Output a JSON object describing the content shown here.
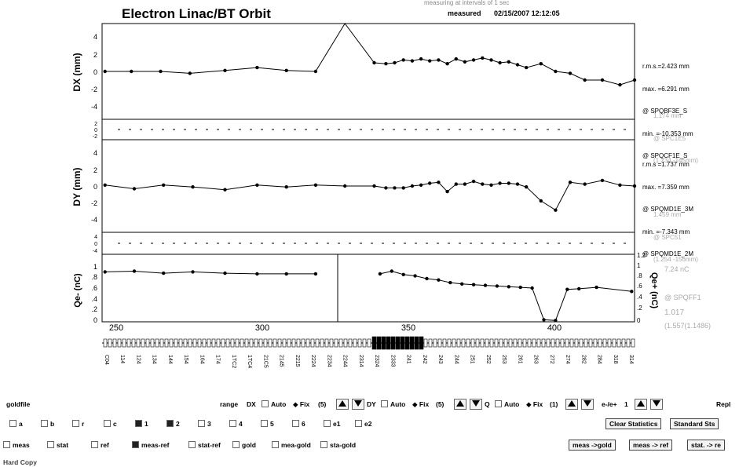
{
  "header": {
    "title": "Electron Linac/BT  Orbit",
    "subtitle": "measuring at intervals of 1 sec",
    "measured_label": "measured",
    "timestamp": "02/15/2007 12:12:05"
  },
  "stats": {
    "dx": [
      "r.m.s.=2.423 mm",
      "max. =6.291 mm",
      "@ SPQBF3E_S",
      "min. =-10.353 mm",
      "@ SPQCF1E_S"
    ],
    "dx_faint": [
      "1.174 mm",
      "@ SPC1E5",
      "(1.234 -145mm)"
    ],
    "dy": [
      "r.m.s =1.737 mm",
      "max. =7.359 mm",
      "@ SPQMD1E_3M",
      "min. =-7.343 mm",
      "@ SPQMD1E_2M"
    ],
    "dy_faint": [
      "1.459 mm",
      "@ SPC51",
      "(1.254 -156mm)"
    ],
    "q_faint": [
      "7.24 nC",
      "@ SPQFF1",
      "(1.557(1.1486)"
    ],
    "q_tail": "1.017"
  },
  "axes": {
    "dx_label": "DX (mm)",
    "dy_label": "DY (mm)",
    "q_label": "Qe- (nC)",
    "q_right_label": "Qe+ (nC)",
    "dx_ticks": [
      "4",
      "2",
      "0",
      "-2",
      "-4"
    ],
    "dy_ticks": [
      "4",
      "2",
      "0",
      "-2",
      "-4"
    ],
    "q_ticks": [
      "1",
      ".8",
      ".6",
      ".4",
      ".2",
      "0"
    ],
    "q_right_ticks": [
      "1.2",
      "1",
      ".8",
      ".6",
      ".4",
      ".2",
      "0"
    ],
    "x_ticks": [
      "250",
      "300",
      "350",
      "400"
    ],
    "diff_ticks": [
      "2",
      "0",
      "-2"
    ],
    "diff_ticks_b": [
      "4",
      "0",
      "-4"
    ]
  },
  "monitors": [
    "C04",
    "114",
    "124",
    "134",
    "144",
    "154",
    "164",
    "174",
    "1TC2",
    "1TC4",
    "21C5",
    "2145",
    "2215",
    "2224",
    "2234",
    "2244",
    "2314",
    "2324",
    "2333",
    "241",
    "242",
    "243",
    "244",
    "251",
    "252",
    "253",
    "261",
    "263",
    "272",
    "274",
    "282",
    "284",
    "318",
    "314"
  ],
  "chart_data": [
    {
      "type": "line",
      "title": "",
      "ylabel": "DX (mm)",
      "xlim": [
        243,
        425
      ],
      "ylim": [
        -5,
        5
      ],
      "series": [
        {
          "x": [
            244,
            253,
            263,
            273,
            285,
            296,
            306,
            316,
            326,
            336,
            340,
            343,
            346,
            349,
            352,
            355,
            358,
            361,
            364,
            367,
            370,
            373,
            376,
            379,
            382,
            385,
            388,
            393,
            398,
            403,
            408,
            414,
            420,
            425
          ],
          "y": [
            0,
            0,
            0,
            -0.2,
            0.1,
            0.4,
            0.1,
            0,
            5.6,
            0.9,
            0.8,
            0.9,
            1.2,
            1.1,
            1.3,
            1.1,
            1.2,
            0.8,
            1.3,
            1.0,
            1.2,
            1.4,
            1.2,
            0.9,
            1.0,
            0.7,
            0.4,
            0.8,
            0.0,
            -0.2,
            -0.9,
            -0.9,
            -1.4,
            -0.9
          ]
        }
      ]
    },
    {
      "type": "line",
      "title": "",
      "ylabel": "DY (mm)",
      "xlim": [
        243,
        425
      ],
      "ylim": [
        -5,
        5
      ],
      "series": [
        {
          "x": [
            244,
            254,
            264,
            274,
            285,
            296,
            306,
            316,
            326,
            336,
            340,
            343,
            346,
            349,
            352,
            355,
            358,
            361,
            364,
            367,
            370,
            373,
            376,
            379,
            382,
            385,
            388,
            393,
            398,
            403,
            408,
            414,
            420,
            425
          ],
          "y": [
            0.1,
            -0.3,
            0.1,
            -0.1,
            -0.4,
            0.1,
            -0.1,
            0.1,
            0.0,
            0.0,
            -0.2,
            -0.2,
            -0.2,
            0.0,
            0.1,
            0.3,
            0.4,
            -0.6,
            0.2,
            0.2,
            0.5,
            0.2,
            0.1,
            0.3,
            0.3,
            0.2,
            -0.1,
            -1.6,
            -2.6,
            0.4,
            0.2,
            0.6,
            0.1,
            0.0
          ]
        }
      ]
    },
    {
      "type": "line",
      "title": "",
      "ylabel": "Qe- (nC)",
      "xlim": [
        243,
        425
      ],
      "ylim": [
        0,
        1
      ],
      "series": [
        {
          "x": [
            244,
            254,
            264,
            274,
            285,
            296,
            306,
            316
          ],
          "y": [
            0.74,
            0.75,
            0.72,
            0.74,
            0.72,
            0.71,
            0.71,
            0.71
          ]
        },
        {
          "x": [
            338,
            342,
            346,
            350,
            354,
            358,
            362,
            366,
            370,
            374,
            378,
            382,
            386,
            390,
            394,
            398,
            402,
            406,
            412,
            424
          ],
          "y": [
            0.71,
            0.75,
            0.7,
            0.68,
            0.64,
            0.62,
            0.58,
            0.56,
            0.55,
            0.54,
            0.53,
            0.52,
            0.51,
            0.5,
            0.03,
            0.02,
            0.48,
            0.49,
            0.51,
            0.45
          ]
        }
      ]
    }
  ],
  "controls": {
    "row1": {
      "goldfile": "goldfile",
      "range": "range",
      "dx": "DX",
      "auto1": "Auto",
      "fix1": "Fix",
      "fix1_val": "(5)",
      "dy": "DY",
      "auto2": "Auto",
      "fix2": "Fix",
      "fix2_val": "(5)",
      "q": "Q",
      "auto3": "Auto",
      "fix3": "Fix",
      "fix3_val": "(1)",
      "ratio": "e-/e+",
      "ratio_val": "1",
      "repl": "Repl"
    },
    "row2": [
      "a",
      "b",
      "r",
      "c",
      "1",
      "2",
      "3",
      "4",
      "5",
      "6",
      "e1",
      "e2"
    ],
    "row2_checked": [
      false,
      false,
      false,
      false,
      true,
      true,
      false,
      false,
      false,
      false,
      false,
      false
    ],
    "clear_stats": "Clear Statistics",
    "standard_sts": "Standard Sts",
    "row3": [
      "meas",
      "stat",
      "ref",
      "meas-ref",
      "stat-ref",
      "gold",
      "mea-gold",
      "sta-gold"
    ],
    "row3_checked": [
      false,
      false,
      false,
      true,
      false,
      false,
      false,
      false
    ],
    "meas_gold": "meas ->gold",
    "meas_ref": "meas -> ref",
    "stat_ref": "stat. -> re",
    "hard_copy": "Hard Copy"
  }
}
